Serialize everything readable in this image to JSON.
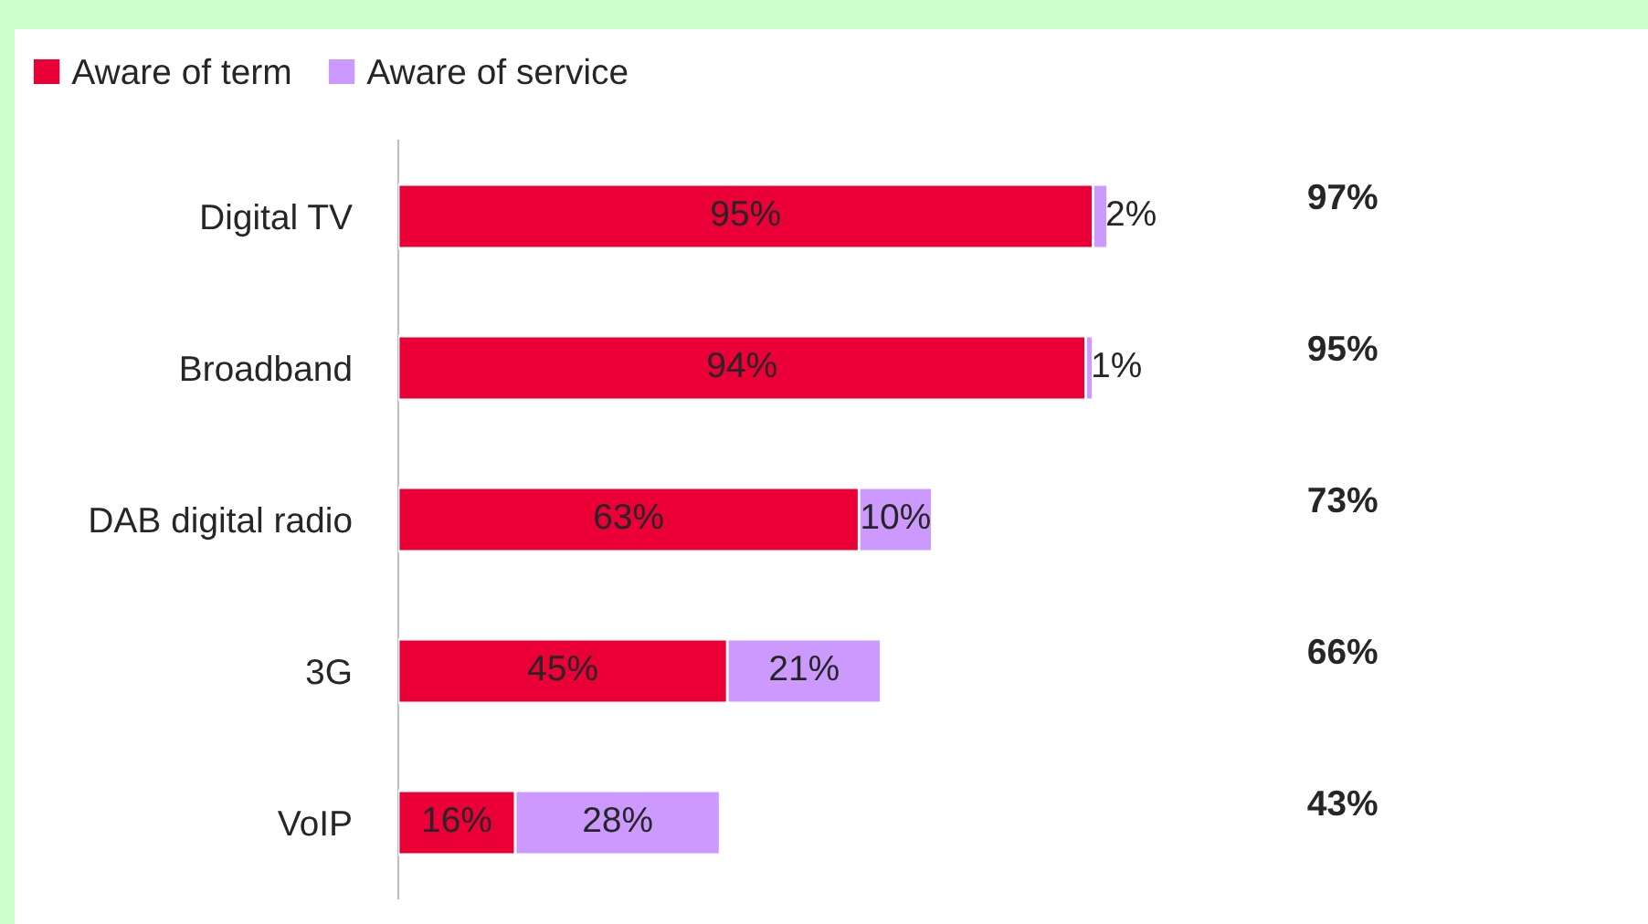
{
  "chart_data": {
    "type": "bar",
    "orientation": "horizontal",
    "stacked": true,
    "categories": [
      "Digital TV",
      "Broadband",
      "DAB digital radio",
      "3G",
      "VoIP"
    ],
    "series": [
      {
        "name": "Aware of term",
        "color": "#ea0037",
        "values": [
          95,
          94,
          63,
          45,
          16
        ],
        "value_labels": [
          "95%",
          "94%",
          "63%",
          "45%",
          "16%"
        ]
      },
      {
        "name": "Aware of service",
        "color": "#cc99ff",
        "values": [
          2,
          1,
          10,
          21,
          28
        ],
        "value_labels": [
          "2%",
          "1%",
          "10%",
          "21%",
          "28%"
        ]
      }
    ],
    "annotations": [
      "97%",
      "95%",
      "73%",
      "66%",
      "43%"
    ],
    "data_labels": true,
    "legend": "top left",
    "tick_labels": "y"
  }
}
